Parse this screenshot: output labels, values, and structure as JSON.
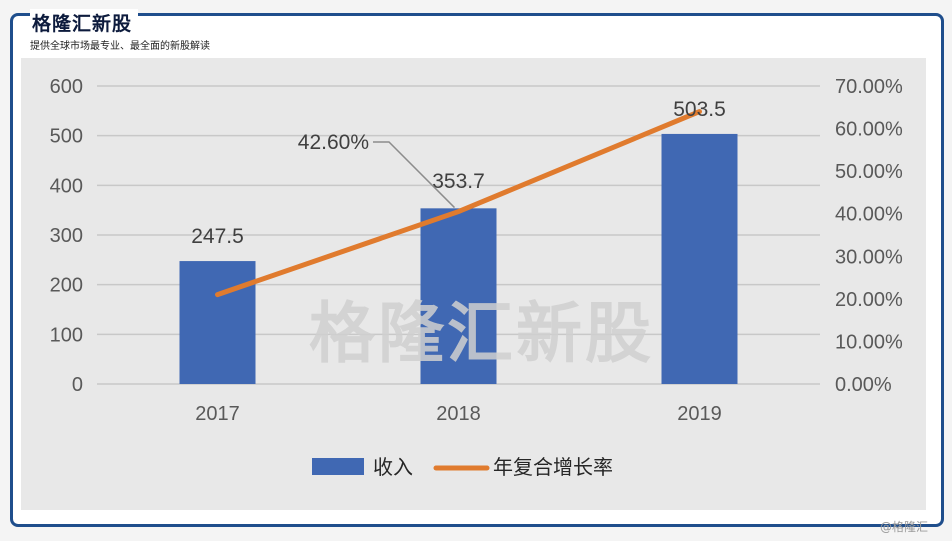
{
  "brand": {
    "title": "格隆汇新股",
    "subtitle": "提供全球市场最专业、最全面的新股解读",
    "watermark": "格隆汇新股",
    "corner_watermark": "@格隆汇"
  },
  "colors": {
    "frame": "#1f4e8c",
    "bar": "#4068b3",
    "line": "#e07b2e",
    "panel": "#e8e8e8"
  },
  "chart_data": {
    "type": "bar",
    "categories": [
      "2017",
      "2018",
      "2019"
    ],
    "series": [
      {
        "name": "收入",
        "type": "bar",
        "axis": "left",
        "values": [
          247.5,
          353.7,
          503.5
        ],
        "labels": [
          "247.5",
          "353.7",
          "503.5"
        ]
      },
      {
        "name": "年复合增长率",
        "type": "line",
        "axis": "right",
        "values": [
          0.21,
          0.405,
          0.64
        ]
      }
    ],
    "annotations": [
      {
        "text": "42.60%"
      }
    ],
    "y_left": {
      "min": 0,
      "max": 600,
      "ticks": [
        0,
        100,
        200,
        300,
        400,
        500,
        600
      ],
      "tick_labels": [
        "0",
        "100",
        "200",
        "300",
        "400",
        "500",
        "600"
      ]
    },
    "y_right": {
      "min": 0,
      "max": 0.7,
      "ticks": [
        0,
        0.1,
        0.2,
        0.3,
        0.4,
        0.5,
        0.6,
        0.7
      ],
      "tick_labels": [
        "0.00%",
        "10.00%",
        "20.00%",
        "30.00%",
        "40.00%",
        "50.00%",
        "60.00%",
        "70.00%"
      ]
    },
    "grid": true,
    "legend_position": "bottom"
  }
}
